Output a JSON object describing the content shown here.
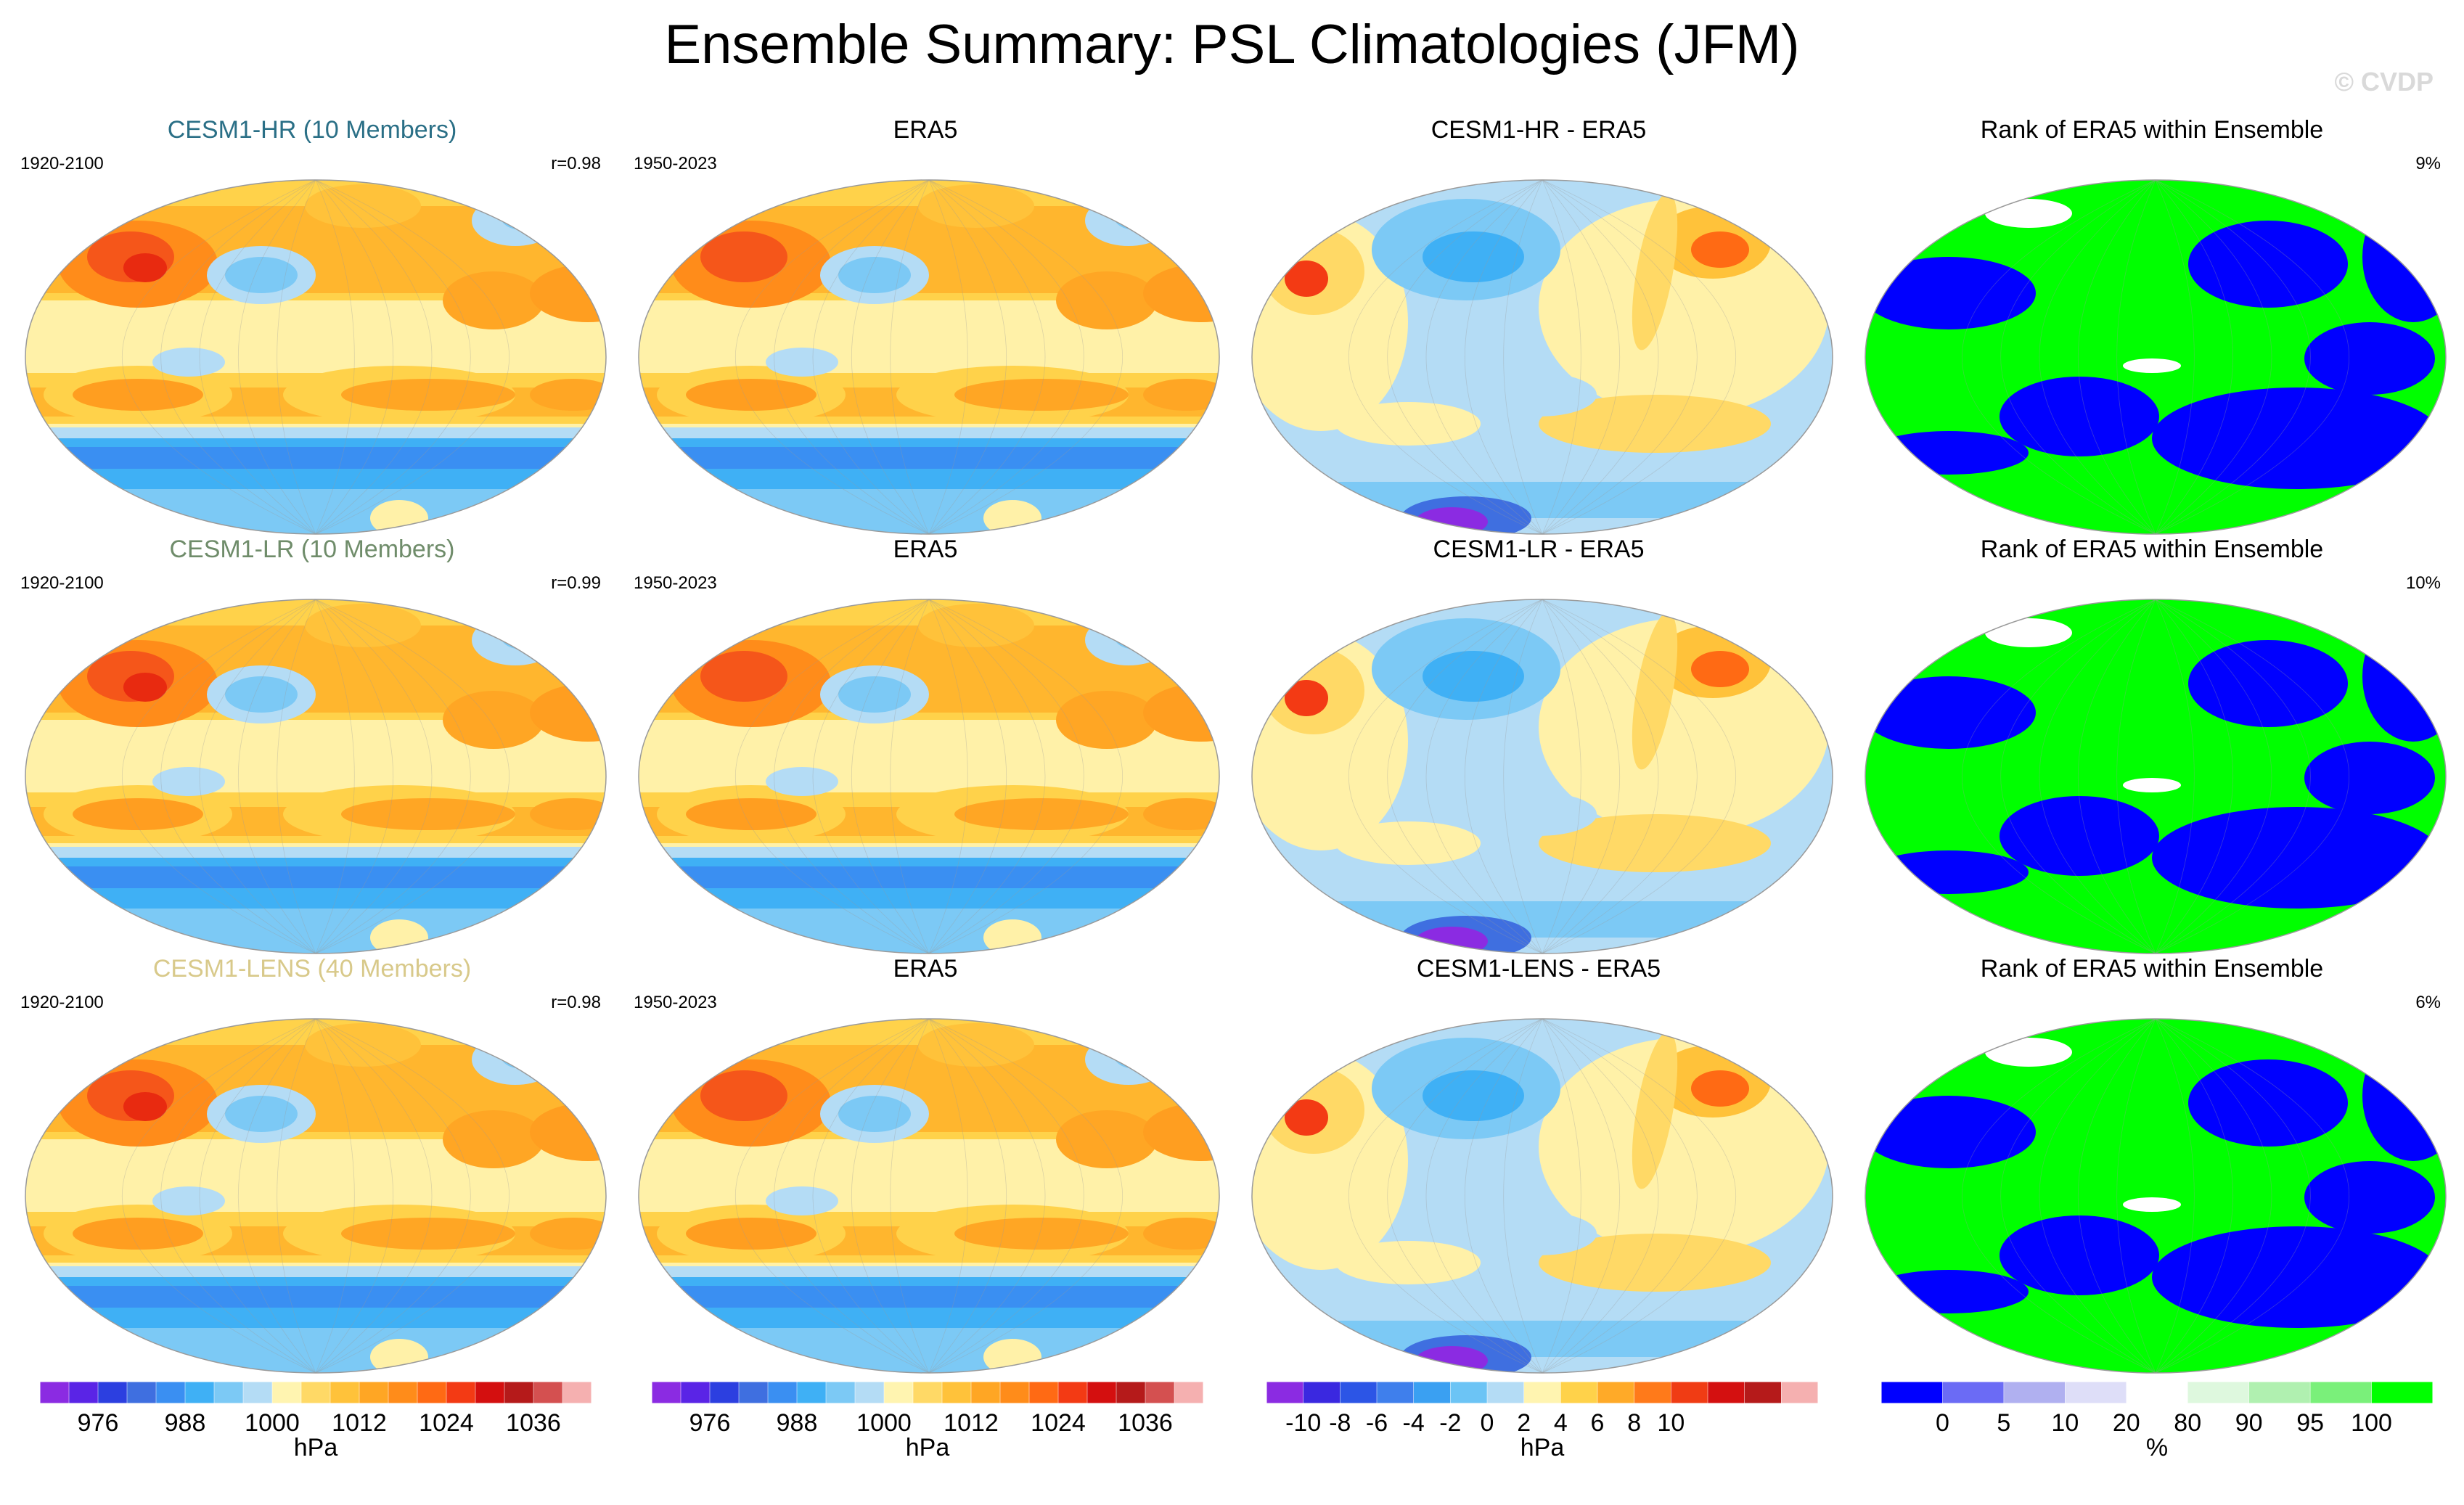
{
  "title": "Ensemble Summary: PSL Climatologies (JFM)",
  "watermark": "© CVDP",
  "rows": [
    {
      "ensemble": {
        "label": "CESM1-HR (10 Members)",
        "color": "#2a6f86",
        "period": "1920-2100",
        "corr": "r=0.98"
      },
      "obs": {
        "label": "ERA5",
        "period": "1950-2023"
      },
      "diff": {
        "label": "CESM1-HR - ERA5"
      },
      "rank": {
        "label": "Rank of ERA5 within Ensemble",
        "pct": "9%"
      }
    },
    {
      "ensemble": {
        "label": "CESM1-LR (10 Members)",
        "color": "#6f8c6a",
        "period": "1920-2100",
        "corr": "r=0.99"
      },
      "obs": {
        "label": "ERA5",
        "period": "1950-2023"
      },
      "diff": {
        "label": "CESM1-LR - ERA5"
      },
      "rank": {
        "label": "Rank of ERA5 within Ensemble",
        "pct": "10%"
      }
    },
    {
      "ensemble": {
        "label": "CESM1-LENS (40 Members)",
        "color": "#d8c98a",
        "period": "1920-2100",
        "corr": "r=0.98"
      },
      "obs": {
        "label": "ERA5",
        "period": "1950-2023"
      },
      "diff": {
        "label": "CESM1-LENS - ERA5"
      },
      "rank": {
        "label": "Rank of ERA5 within Ensemble",
        "pct": "6%"
      }
    }
  ],
  "colorbars": [
    {
      "name": "psl",
      "unit": "hPa",
      "ticks": [
        "976",
        "988",
        "1000",
        "1012",
        "1024",
        "1036"
      ],
      "tick_index": [
        2,
        5,
        8,
        11,
        14,
        17
      ],
      "colors": [
        "#8b2be2",
        "#5a24e6",
        "#2c3fe0",
        "#3f6fe0",
        "#3a8ff2",
        "#3fb0f5",
        "#7cc9f5",
        "#b4dcf5",
        "#fff4b0",
        "#ffd966",
        "#ffc23a",
        "#ffa624",
        "#ff8c1a",
        "#ff6a14",
        "#f33a14",
        "#d40f0f",
        "#b51a1a",
        "#d45050",
        "#f5b0b0"
      ]
    },
    {
      "name": "psl-obs",
      "unit": "hPa",
      "ticks": [
        "976",
        "988",
        "1000",
        "1012",
        "1024",
        "1036"
      ],
      "tick_index": [
        2,
        5,
        8,
        11,
        14,
        17
      ],
      "colors": [
        "#8b2be2",
        "#5a24e6",
        "#2c3fe0",
        "#3f6fe0",
        "#3a8ff2",
        "#3fb0f5",
        "#7cc9f5",
        "#b4dcf5",
        "#fff4b0",
        "#ffd966",
        "#ffc23a",
        "#ffa624",
        "#ff8c1a",
        "#ff6a14",
        "#f33a14",
        "#d40f0f",
        "#b51a1a",
        "#d45050",
        "#f5b0b0"
      ]
    },
    {
      "name": "diff",
      "unit": "hPa",
      "ticks": [
        "-10",
        "-8",
        "-6",
        "-4",
        "-2",
        "0",
        "2",
        "4",
        "6",
        "8",
        "10"
      ],
      "tick_index": [
        1,
        2,
        3,
        4,
        5,
        6,
        7,
        8,
        9,
        10,
        11
      ],
      "colors": [
        "#8b2be2",
        "#3a28e0",
        "#2c55e6",
        "#3f7fec",
        "#3aa0f2",
        "#6cc4f5",
        "#b4dcf5",
        "#fff4b0",
        "#ffd24a",
        "#ffaa28",
        "#ff7a1a",
        "#f03c14",
        "#d41010",
        "#b51a1a",
        "#f5b0b0"
      ]
    },
    {
      "name": "rank",
      "unit": "%",
      "ticks": [
        "0",
        "5",
        "10",
        "20",
        "80",
        "90",
        "95",
        "100"
      ],
      "tick_index": [
        1,
        2,
        3,
        4,
        5,
        6,
        7,
        8
      ],
      "colors": [
        "#0000ff",
        "#6b6bf5",
        "#b0b0f0",
        "#dedef8",
        "#ffffff",
        "#def8de",
        "#b0f0b0",
        "#7af07a",
        "#00ff00"
      ]
    }
  ]
}
